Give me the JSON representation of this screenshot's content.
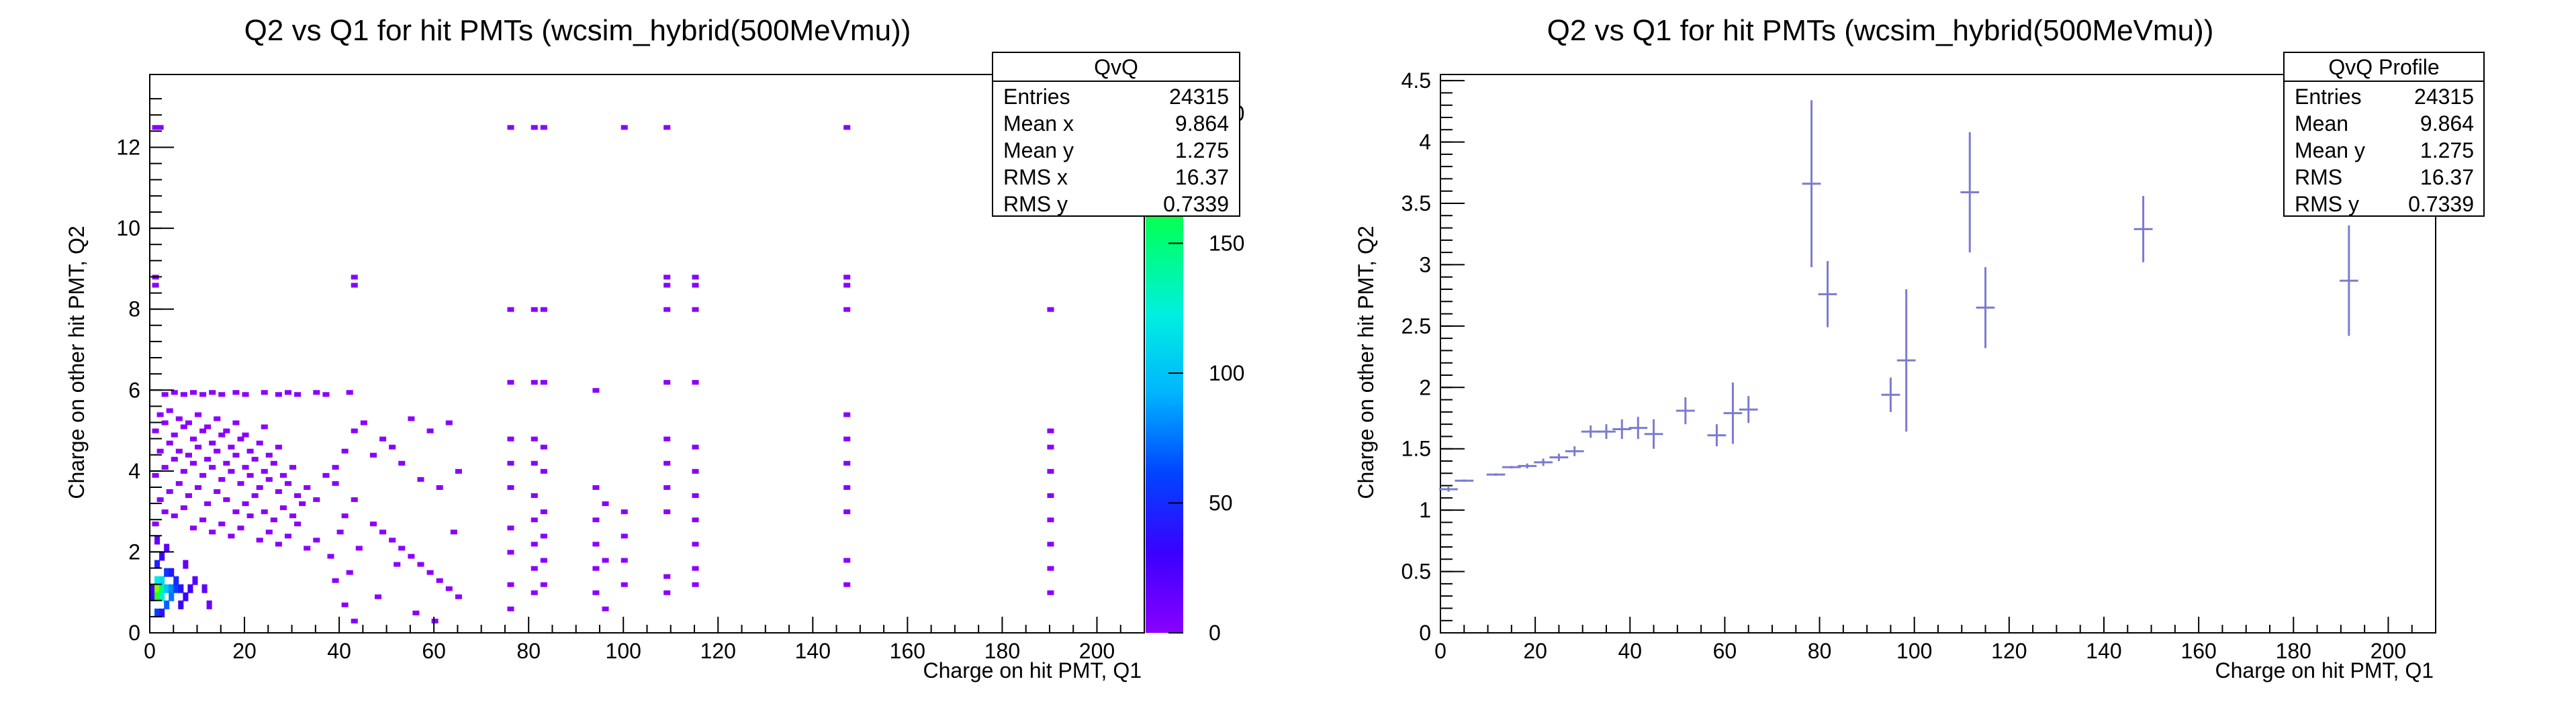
{
  "chart_data": [
    {
      "type": "heatmap",
      "title": "Q2 vs Q1 for hit PMTs (wcsim_hybrid(500MeVmu))",
      "xlabel": "Charge on hit PMT, Q1",
      "ylabel": "Charge on other hit PMT, Q2",
      "xlim": [
        0,
        210
      ],
      "ylim": [
        0,
        13.8
      ],
      "x_ticks": [
        0,
        20,
        40,
        60,
        80,
        100,
        120,
        140,
        160,
        180,
        200
      ],
      "y_ticks": [
        0,
        2,
        4,
        6,
        8,
        10,
        12
      ],
      "colorbar": {
        "ticks": [
          0,
          50,
          100,
          150,
          200
        ],
        "max": 215,
        "colors": [
          "#8a00ff",
          "#3a00ff",
          "#0044ff",
          "#00b4ff",
          "#00f0e0",
          "#00ff6a",
          "#3cff00",
          "#c8ff00"
        ]
      },
      "stats": {
        "name": "QvQ",
        "rows": [
          {
            "label": "Entries",
            "value": "24315"
          },
          {
            "label": "Mean x",
            "value": "9.864"
          },
          {
            "label": "Mean y",
            "value": "1.275"
          },
          {
            "label": "RMS x",
            "value": "16.37"
          },
          {
            "label": "RMS y",
            "value": "0.7339"
          }
        ]
      },
      "cells": [
        {
          "x": 0.5,
          "y": 0.9,
          "v": 30
        },
        {
          "x": 0.5,
          "y": 1.1,
          "v": 30
        },
        {
          "x": 1.5,
          "y": 1.1,
          "v": 200
        },
        {
          "x": 1.5,
          "y": 0.9,
          "v": 170
        },
        {
          "x": 2.5,
          "y": 1.1,
          "v": 150
        },
        {
          "x": 2.5,
          "y": 1.3,
          "v": 110
        },
        {
          "x": 1.5,
          "y": 1.3,
          "v": 120
        },
        {
          "x": 2.5,
          "y": 0.9,
          "v": 130
        },
        {
          "x": 3.5,
          "y": 1.1,
          "v": 100
        },
        {
          "x": 3.5,
          "y": 0.7,
          "v": 70
        },
        {
          "x": 4.5,
          "y": 1.1,
          "v": 80
        },
        {
          "x": 4.5,
          "y": 0.9,
          "v": 75
        },
        {
          "x": 5.5,
          "y": 1.1,
          "v": 60
        },
        {
          "x": 5.5,
          "y": 1.3,
          "v": 50
        },
        {
          "x": 6.5,
          "y": 1.1,
          "v": 40
        },
        {
          "x": 7.5,
          "y": 0.9,
          "v": 35
        },
        {
          "x": 8.5,
          "y": 1.1,
          "v": 28
        },
        {
          "x": 1.5,
          "y": 0.5,
          "v": 60
        },
        {
          "x": 2.5,
          "y": 0.5,
          "v": 40
        },
        {
          "x": 3.5,
          "y": 1.5,
          "v": 55
        },
        {
          "x": 1.5,
          "y": 1.7,
          "v": 45
        },
        {
          "x": 2.5,
          "y": 1.9,
          "v": 30
        },
        {
          "x": 4.5,
          "y": 1.5,
          "v": 40
        },
        {
          "x": 6.5,
          "y": 0.7,
          "v": 30
        },
        {
          "x": 9.5,
          "y": 1.3,
          "v": 20
        },
        {
          "x": 11.5,
          "y": 1.1,
          "v": 15
        },
        {
          "x": 3.5,
          "y": 2.1,
          "v": 18
        },
        {
          "x": 1.5,
          "y": 2.3,
          "v": 15
        },
        {
          "x": 7.5,
          "y": 1.7,
          "v": 15
        },
        {
          "x": 12.5,
          "y": 0.7,
          "v": 12
        }
      ],
      "sparse_points": [
        [
          1,
          2.7
        ],
        [
          3,
          3.0
        ],
        [
          5,
          2.9
        ],
        [
          7,
          3.1
        ],
        [
          9,
          2.6
        ],
        [
          11,
          2.8
        ],
        [
          13,
          2.5
        ],
        [
          15,
          2.7
        ],
        [
          17,
          2.4
        ],
        [
          19,
          2.6
        ],
        [
          21,
          2.9
        ],
        [
          23,
          2.3
        ],
        [
          25,
          2.5
        ],
        [
          27,
          2.2
        ],
        [
          29,
          2.4
        ],
        [
          31,
          2.7
        ],
        [
          33,
          2.1
        ],
        [
          35,
          2.3
        ],
        [
          2,
          3.3
        ],
        [
          4,
          3.5
        ],
        [
          6,
          3.7
        ],
        [
          8,
          3.4
        ],
        [
          10,
          3.6
        ],
        [
          12,
          3.2
        ],
        [
          14,
          3.5
        ],
        [
          16,
          3.3
        ],
        [
          18,
          3.0
        ],
        [
          20,
          3.2
        ],
        [
          22,
          3.4
        ],
        [
          24,
          3.0
        ],
        [
          26,
          2.8
        ],
        [
          28,
          3.1
        ],
        [
          30,
          2.9
        ],
        [
          32,
          3.2
        ],
        [
          1,
          3.9
        ],
        [
          3,
          4.1
        ],
        [
          5,
          4.3
        ],
        [
          7,
          4.0
        ],
        [
          9,
          4.2
        ],
        [
          11,
          3.9
        ],
        [
          13,
          4.1
        ],
        [
          15,
          3.8
        ],
        [
          17,
          4.0
        ],
        [
          19,
          3.7
        ],
        [
          21,
          3.9
        ],
        [
          23,
          3.6
        ],
        [
          25,
          3.8
        ],
        [
          27,
          3.5
        ],
        [
          29,
          3.7
        ],
        [
          31,
          3.4
        ],
        [
          33,
          3.6
        ],
        [
          35,
          3.3
        ],
        [
          2,
          4.5
        ],
        [
          4,
          4.7
        ],
        [
          6,
          4.5
        ],
        [
          8,
          4.4
        ],
        [
          10,
          4.6
        ],
        [
          12,
          4.3
        ],
        [
          14,
          4.5
        ],
        [
          16,
          4.2
        ],
        [
          18,
          4.4
        ],
        [
          20,
          4.1
        ],
        [
          22,
          4.3
        ],
        [
          24,
          4.0
        ],
        [
          26,
          4.2
        ],
        [
          28,
          3.9
        ],
        [
          30,
          4.1
        ],
        [
          1,
          5.0
        ],
        [
          3,
          5.2
        ],
        [
          5,
          4.9
        ],
        [
          7,
          5.1
        ],
        [
          9,
          4.8
        ],
        [
          11,
          5.0
        ],
        [
          13,
          4.7
        ],
        [
          15,
          4.9
        ],
        [
          17,
          4.6
        ],
        [
          19,
          4.8
        ],
        [
          21,
          4.5
        ],
        [
          23,
          4.7
        ],
        [
          25,
          4.4
        ],
        [
          27,
          4.6
        ],
        [
          2,
          5.4
        ],
        [
          4,
          5.5
        ],
        [
          6,
          5.3
        ],
        [
          8,
          5.2
        ],
        [
          10,
          5.4
        ],
        [
          12,
          5.1
        ],
        [
          14,
          5.3
        ],
        [
          16,
          5.0
        ],
        [
          18,
          5.2
        ],
        [
          20,
          4.9
        ],
        [
          24,
          5.1
        ],
        [
          3,
          5.9
        ],
        [
          5,
          5.95
        ],
        [
          7,
          5.9
        ],
        [
          9,
          5.95
        ],
        [
          11,
          5.9
        ],
        [
          13,
          5.95
        ],
        [
          15,
          5.9
        ],
        [
          18,
          5.95
        ],
        [
          20,
          5.9
        ],
        [
          24,
          5.95
        ],
        [
          27,
          5.9
        ],
        [
          29,
          5.95
        ],
        [
          31,
          5.9
        ],
        [
          35,
          5.95
        ],
        [
          37,
          5.9
        ],
        [
          42,
          5.95
        ],
        [
          1,
          8.6
        ],
        [
          1,
          8.8
        ],
        [
          1,
          12.5
        ],
        [
          2,
          12.5
        ],
        [
          37,
          3.9
        ],
        [
          39,
          3.7
        ],
        [
          41,
          2.9
        ],
        [
          43,
          5.0
        ],
        [
          39,
          4.1
        ],
        [
          43,
          3.3
        ],
        [
          41,
          4.5
        ],
        [
          40,
          2.5
        ],
        [
          42,
          1.5
        ],
        [
          38,
          1.9
        ],
        [
          44,
          2.1
        ],
        [
          39,
          1.3
        ],
        [
          41,
          0.7
        ],
        [
          43,
          0.3
        ],
        [
          43,
          8.6
        ],
        [
          43,
          8.8
        ],
        [
          45,
          5.2
        ],
        [
          49,
          4.8
        ],
        [
          51,
          4.6
        ],
        [
          47,
          4.4
        ],
        [
          53,
          4.2
        ],
        [
          57,
          3.8
        ],
        [
          61,
          3.6
        ],
        [
          55,
          5.3
        ],
        [
          59,
          5.0
        ],
        [
          63,
          5.2
        ],
        [
          65,
          4.0
        ],
        [
          47,
          2.7
        ],
        [
          49,
          2.5
        ],
        [
          51,
          2.3
        ],
        [
          53,
          2.1
        ],
        [
          55,
          1.9
        ],
        [
          57,
          1.7
        ],
        [
          59,
          1.5
        ],
        [
          61,
          1.3
        ],
        [
          63,
          1.1
        ],
        [
          65,
          0.9
        ],
        [
          48,
          0.9
        ],
        [
          52,
          1.7
        ],
        [
          56,
          0.5
        ],
        [
          60,
          0.3
        ],
        [
          64,
          2.5
        ],
        [
          76,
          12.5
        ],
        [
          81,
          12.5
        ],
        [
          83,
          12.5
        ],
        [
          100,
          12.5
        ],
        [
          109,
          12.5
        ],
        [
          147,
          12.5
        ],
        [
          76,
          8.0
        ],
        [
          81,
          8.0
        ],
        [
          83,
          8.0
        ],
        [
          109,
          8.0
        ],
        [
          115,
          8.0
        ],
        [
          147,
          8.0
        ],
        [
          190,
          8.0
        ],
        [
          109,
          8.6
        ],
        [
          109,
          8.8
        ],
        [
          115,
          8.6
        ],
        [
          115,
          8.8
        ],
        [
          147,
          8.6
        ],
        [
          147,
          8.8
        ],
        [
          76,
          6.2
        ],
        [
          81,
          6.2
        ],
        [
          83,
          6.2
        ],
        [
          94,
          6.0
        ],
        [
          109,
          6.2
        ],
        [
          115,
          6.2
        ],
        [
          147,
          5.4
        ],
        [
          190,
          5.0
        ],
        [
          76,
          4.8
        ],
        [
          76,
          4.2
        ],
        [
          76,
          3.6
        ],
        [
          76,
          2.6
        ],
        [
          76,
          2.0
        ],
        [
          76,
          1.2
        ],
        [
          76,
          0.6
        ],
        [
          81,
          4.8
        ],
        [
          81,
          4.2
        ],
        [
          81,
          3.4
        ],
        [
          81,
          2.8
        ],
        [
          81,
          2.2
        ],
        [
          81,
          1.6
        ],
        [
          81,
          1.0
        ],
        [
          83,
          4.6
        ],
        [
          83,
          4.0
        ],
        [
          83,
          3.0
        ],
        [
          83,
          2.4
        ],
        [
          83,
          1.8
        ],
        [
          83,
          1.2
        ],
        [
          94,
          3.6
        ],
        [
          94,
          2.8
        ],
        [
          94,
          2.2
        ],
        [
          94,
          1.6
        ],
        [
          94,
          1.0
        ],
        [
          96,
          3.2
        ],
        [
          96,
          1.8
        ],
        [
          96,
          0.6
        ],
        [
          100,
          3.0
        ],
        [
          100,
          2.4
        ],
        [
          100,
          1.8
        ],
        [
          100,
          1.2
        ],
        [
          109,
          4.8
        ],
        [
          109,
          4.2
        ],
        [
          109,
          3.6
        ],
        [
          109,
          3.0
        ],
        [
          109,
          1.4
        ],
        [
          109,
          1.0
        ],
        [
          115,
          4.6
        ],
        [
          115,
          4.0
        ],
        [
          115,
          3.4
        ],
        [
          115,
          2.8
        ],
        [
          115,
          2.2
        ],
        [
          115,
          1.6
        ],
        [
          115,
          1.2
        ],
        [
          147,
          4.8
        ],
        [
          147,
          4.2
        ],
        [
          147,
          3.6
        ],
        [
          147,
          3.0
        ],
        [
          147,
          1.8
        ],
        [
          147,
          1.2
        ],
        [
          190,
          4.6
        ],
        [
          190,
          4.0
        ],
        [
          190,
          3.4
        ],
        [
          190,
          2.8
        ],
        [
          190,
          2.2
        ],
        [
          190,
          1.6
        ],
        [
          190,
          1.0
        ]
      ]
    },
    {
      "type": "scatter",
      "subtype": "profile",
      "title": "Q2 vs Q1 for hit PMTs (wcsim_hybrid(500MeVmu))",
      "xlabel": "Charge on hit PMT, Q1",
      "ylabel": "Charge on other hit PMT, Q2",
      "xlim": [
        0,
        210
      ],
      "ylim": [
        0,
        4.55
      ],
      "x_ticks": [
        0,
        20,
        40,
        60,
        80,
        100,
        120,
        140,
        160,
        180,
        200
      ],
      "y_ticks": [
        0,
        0.5,
        1,
        1.5,
        2,
        2.5,
        3,
        3.5,
        4,
        4.5
      ],
      "color": "#7b7bd0",
      "stats": {
        "name": "QvQ Profile",
        "rows": [
          {
            "label": "Entries",
            "value": "24315"
          },
          {
            "label": "Mean",
            "value": "9.864"
          },
          {
            "label": "Mean y",
            "value": "1.275"
          },
          {
            "label": "RMS",
            "value": "16.37"
          },
          {
            "label": "RMS y",
            "value": "0.7339"
          }
        ]
      },
      "points": [
        {
          "x": 1.7,
          "y": 1.17,
          "err": 0.02
        },
        {
          "x": 5.0,
          "y": 1.24,
          "err": 0.01
        },
        {
          "x": 11.7,
          "y": 1.29,
          "err": 0.01
        },
        {
          "x": 15.0,
          "y": 1.35,
          "err": 0.01
        },
        {
          "x": 18.3,
          "y": 1.36,
          "err": 0.02
        },
        {
          "x": 21.7,
          "y": 1.39,
          "err": 0.03
        },
        {
          "x": 25.0,
          "y": 1.43,
          "err": 0.03
        },
        {
          "x": 28.3,
          "y": 1.48,
          "err": 0.04
        },
        {
          "x": 31.7,
          "y": 1.64,
          "err": 0.05
        },
        {
          "x": 35.0,
          "y": 1.64,
          "err": 0.06
        },
        {
          "x": 38.3,
          "y": 1.66,
          "err": 0.08
        },
        {
          "x": 41.7,
          "y": 1.67,
          "err": 0.09
        },
        {
          "x": 45.0,
          "y": 1.62,
          "err": 0.12
        },
        {
          "x": 51.7,
          "y": 1.81,
          "err": 0.11
        },
        {
          "x": 58.3,
          "y": 1.61,
          "err": 0.09
        },
        {
          "x": 61.7,
          "y": 1.79,
          "err": 0.25
        },
        {
          "x": 65.0,
          "y": 1.82,
          "err": 0.11
        },
        {
          "x": 78.3,
          "y": 3.66,
          "err": 0.68
        },
        {
          "x": 81.7,
          "y": 2.76,
          "err": 0.27
        },
        {
          "x": 95.0,
          "y": 1.94,
          "err": 0.14
        },
        {
          "x": 98.3,
          "y": 2.22,
          "err": 0.58
        },
        {
          "x": 111.7,
          "y": 3.59,
          "err": 0.49
        },
        {
          "x": 115.0,
          "y": 2.65,
          "err": 0.33
        },
        {
          "x": 148.3,
          "y": 3.29,
          "err": 0.27
        },
        {
          "x": 191.7,
          "y": 2.87,
          "err": 0.45
        }
      ]
    }
  ]
}
